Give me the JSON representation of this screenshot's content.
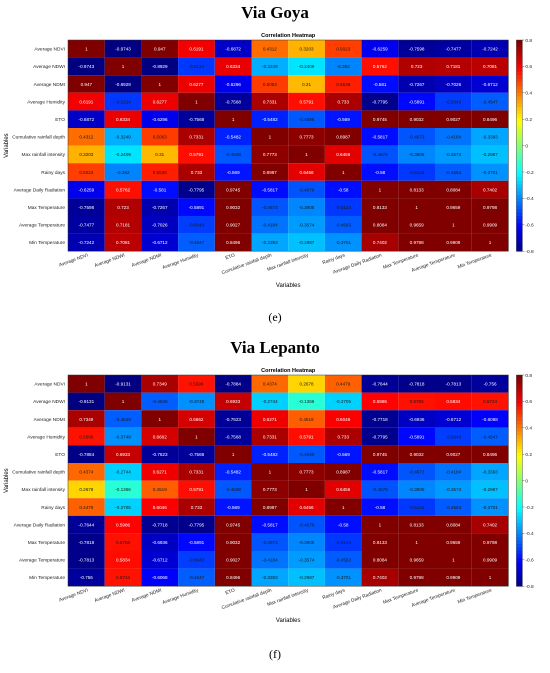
{
  "figures": [
    {
      "title": "Via Goya",
      "caption": "(e)",
      "chart_data": {
        "type": "heatmap",
        "title": "Correlation Heatmap",
        "xlabel": "Variables",
        "ylabel": "Variables",
        "variables": [
          "Average NDVI",
          "Average NDWI",
          "Average NDMI",
          "Average Humidity",
          "ETO",
          "Cumulative rainfall depth",
          "Max rainfall intensity",
          "Rainy days",
          "Average Daily Radiation",
          "Max Temperature",
          "Average Temperature",
          "Min Temperature"
        ],
        "values": [
          [
            1,
            -0.9743,
            0.947,
            0.6191,
            -0.6872,
            0.4312,
            0.3203,
            0.5023,
            -0.6259,
            -0.7598,
            -0.7477,
            -0.7242
          ],
          [
            -0.9743,
            1,
            -0.8929,
            -0.5124,
            0.6334,
            -0.3249,
            -0.2409,
            -0.392,
            0.5762,
            0.723,
            0.7181,
            0.7081
          ],
          [
            0.947,
            -0.8929,
            1,
            0.6277,
            -0.6296,
            0.5063,
            0.31,
            0.5536,
            -0.581,
            -0.7267,
            -0.7026,
            -0.6712
          ],
          [
            0.6191,
            -0.5124,
            0.6277,
            1,
            -0.7568,
            0.7331,
            0.5791,
            0.733,
            -0.7795,
            -0.5891,
            -0.5043,
            -0.4547
          ],
          [
            -0.6872,
            0.6334,
            -0.6296,
            -0.7568,
            1,
            -0.5482,
            -0.4598,
            -0.569,
            0.9745,
            0.9032,
            0.9027,
            0.8496
          ],
          [
            0.4312,
            -0.3249,
            0.5063,
            0.7331,
            -0.5482,
            1,
            0.7773,
            0.8987,
            -0.5817,
            -0.4673,
            -0.4184,
            -0.3393
          ],
          [
            0.3203,
            -0.2409,
            0.31,
            0.5791,
            -0.4598,
            0.7773,
            1,
            0.6456,
            -0.4678,
            -0.3905,
            -0.3574,
            -0.2987
          ],
          [
            0.5023,
            -0.392,
            0.5536,
            0.733,
            -0.569,
            0.8987,
            0.6456,
            1,
            -0.58,
            -0.5124,
            -0.4563,
            -0.3701
          ],
          [
            -0.6259,
            0.5762,
            -0.581,
            -0.7795,
            0.9745,
            -0.5817,
            -0.4678,
            -0.58,
            1,
            0.8133,
            0.8084,
            0.7402
          ],
          [
            -0.7598,
            0.723,
            -0.7267,
            -0.5891,
            0.9032,
            -0.4673,
            -0.3905,
            -0.5124,
            0.8133,
            1,
            0.9659,
            0.9798
          ],
          [
            -0.7477,
            0.7181,
            -0.7026,
            -0.5043,
            0.9027,
            -0.4184,
            -0.3574,
            -0.4563,
            0.8084,
            0.9659,
            1,
            0.9909
          ],
          [
            -0.7242,
            0.7081,
            -0.6712,
            -0.4547,
            0.8496,
            -0.3393,
            -0.2987,
            -0.3701,
            0.7402,
            0.9798,
            0.9909,
            1
          ]
        ],
        "colorbar_range": [
          -0.8,
          0.8
        ],
        "colorbar_ticks": [
          0.8,
          0.6,
          0.4,
          0.2,
          0,
          -0.2,
          -0.4,
          -0.6,
          -0.8
        ],
        "colormap": "jet"
      }
    },
    {
      "title": "Via Lepanto",
      "caption": "(f)",
      "chart_data": {
        "type": "heatmap",
        "title": "Correlation Heatmap",
        "xlabel": "Variables",
        "ylabel": "Variables",
        "variables": [
          "Average NDVI",
          "Average NDWI",
          "Average NDMI",
          "Average Humidity",
          "ETO",
          "Cumulative rainfall depth",
          "Max rainfall intensity",
          "Rainy days",
          "Average Daily Radiation",
          "Max Temperature",
          "Average Temperature",
          "Min Temperature"
        ],
        "values": [
          [
            1,
            -0.9131,
            0.7349,
            0.5696,
            -0.7884,
            0.4374,
            0.2678,
            0.4479,
            -0.7644,
            -0.7818,
            -0.7813,
            -0.756
          ],
          [
            -0.9131,
            1,
            -0.4549,
            -0.3749,
            0.6933,
            -0.2744,
            -0.1366,
            -0.2705,
            0.5986,
            0.5756,
            0.5834,
            0.5724
          ],
          [
            0.7349,
            -0.4549,
            1,
            0.6662,
            -0.7623,
            0.6271,
            0.4519,
            0.6046,
            -0.7718,
            -0.6936,
            -0.6712,
            -0.6068
          ],
          [
            0.5696,
            -0.3749,
            0.6662,
            1,
            -0.7568,
            0.7331,
            0.5791,
            0.733,
            -0.7795,
            -0.5891,
            -0.5043,
            -0.4547
          ],
          [
            -0.7884,
            0.6933,
            -0.7623,
            -0.7568,
            1,
            -0.5482,
            -0.4598,
            -0.569,
            0.9745,
            0.9032,
            0.9027,
            0.8496
          ],
          [
            0.4374,
            -0.2744,
            0.6271,
            0.7331,
            -0.5482,
            1,
            0.7773,
            0.8987,
            -0.5817,
            -0.4673,
            -0.4184,
            -0.3393
          ],
          [
            0.2678,
            -0.1366,
            0.4519,
            0.5791,
            -0.4598,
            0.7773,
            1,
            0.6456,
            -0.4678,
            -0.3905,
            -0.3574,
            -0.2987
          ],
          [
            0.4479,
            -0.2705,
            0.6046,
            0.733,
            -0.569,
            0.8987,
            0.6456,
            1,
            -0.58,
            -0.5124,
            -0.4563,
            -0.3701
          ],
          [
            -0.7644,
            0.5986,
            -0.7718,
            -0.7795,
            0.9745,
            -0.5817,
            -0.4678,
            -0.58,
            1,
            0.8133,
            0.8084,
            0.7402
          ],
          [
            -0.7818,
            0.5756,
            -0.6936,
            -0.5891,
            0.9032,
            -0.4673,
            -0.3905,
            -0.5124,
            0.8133,
            1,
            0.9659,
            0.9798
          ],
          [
            -0.7813,
            0.5834,
            -0.6712,
            -0.5043,
            0.9027,
            -0.4184,
            -0.3574,
            -0.4563,
            0.8084,
            0.9659,
            1,
            0.9909
          ],
          [
            -0.756,
            0.5724,
            -0.6068,
            -0.4547,
            0.8496,
            -0.3393,
            -0.2987,
            -0.3701,
            0.7402,
            0.9798,
            0.9909,
            1
          ]
        ],
        "colorbar_range": [
          -0.8,
          0.8
        ],
        "colorbar_ticks": [
          0.8,
          0.6,
          0.4,
          0.2,
          0,
          -0.2,
          -0.4,
          -0.6,
          -0.8
        ],
        "colormap": "jet"
      }
    }
  ]
}
